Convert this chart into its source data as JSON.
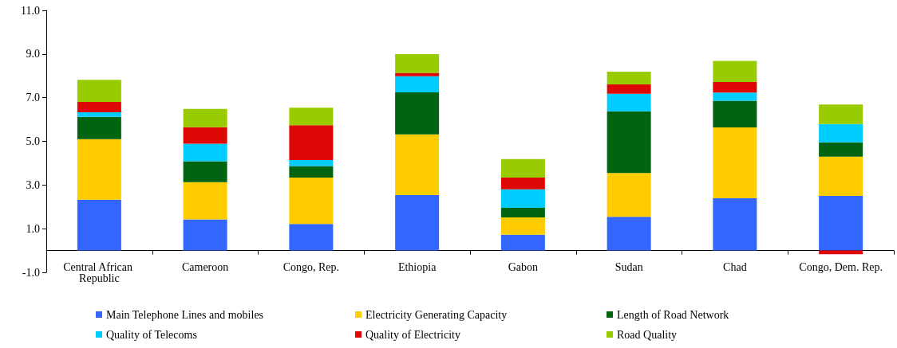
{
  "chart_data": {
    "type": "bar",
    "stacked": true,
    "categories": [
      "Central African Republic",
      "Cameroon",
      "Congo, Rep.",
      "Ethiopia",
      "Gabon",
      "Sudan",
      "Chad",
      "Congo, Dem. Rep."
    ],
    "series": [
      {
        "name": "Main Telephone Lines and mobiles",
        "color": "#3366ff",
        "values": [
          2.33,
          1.43,
          1.22,
          2.54,
          0.72,
          1.54,
          2.39,
          2.5
        ]
      },
      {
        "name": "Electricity Generating Capacity",
        "color": "#ffcc00",
        "values": [
          2.77,
          1.7,
          2.12,
          2.78,
          0.8,
          2.01,
          3.25,
          1.8
        ]
      },
      {
        "name": "Length of Road Network",
        "color": "#006411",
        "values": [
          1.02,
          0.96,
          0.53,
          1.92,
          0.43,
          2.83,
          1.22,
          0.65
        ]
      },
      {
        "name": "Quality of Telecoms",
        "color": "#00ccff",
        "values": [
          0.21,
          0.8,
          0.27,
          0.74,
          0.85,
          0.8,
          0.37,
          0.84
        ]
      },
      {
        "name": "Quality of Electricity",
        "color": "#dd0806",
        "values": [
          0.48,
          0.76,
          1.6,
          0.16,
          0.54,
          0.43,
          0.49,
          -0.17
        ]
      },
      {
        "name": "Road Quality",
        "color": "#99cc00",
        "values": [
          1.01,
          0.84,
          0.8,
          0.85,
          0.85,
          0.58,
          0.96,
          0.9
        ]
      }
    ],
    "ylim": [
      -1,
      11
    ],
    "yticks": [
      {
        "value": -1,
        "label": "-1.0"
      },
      {
        "value": 1,
        "label": "1.0"
      },
      {
        "value": 3,
        "label": "3.0"
      },
      {
        "value": 5,
        "label": "5.0"
      },
      {
        "value": 7,
        "label": "7.0"
      },
      {
        "value": 9,
        "label": "9.0"
      },
      {
        "value": 11,
        "label": "11.0"
      }
    ],
    "grid": false,
    "legend": "bottom"
  }
}
